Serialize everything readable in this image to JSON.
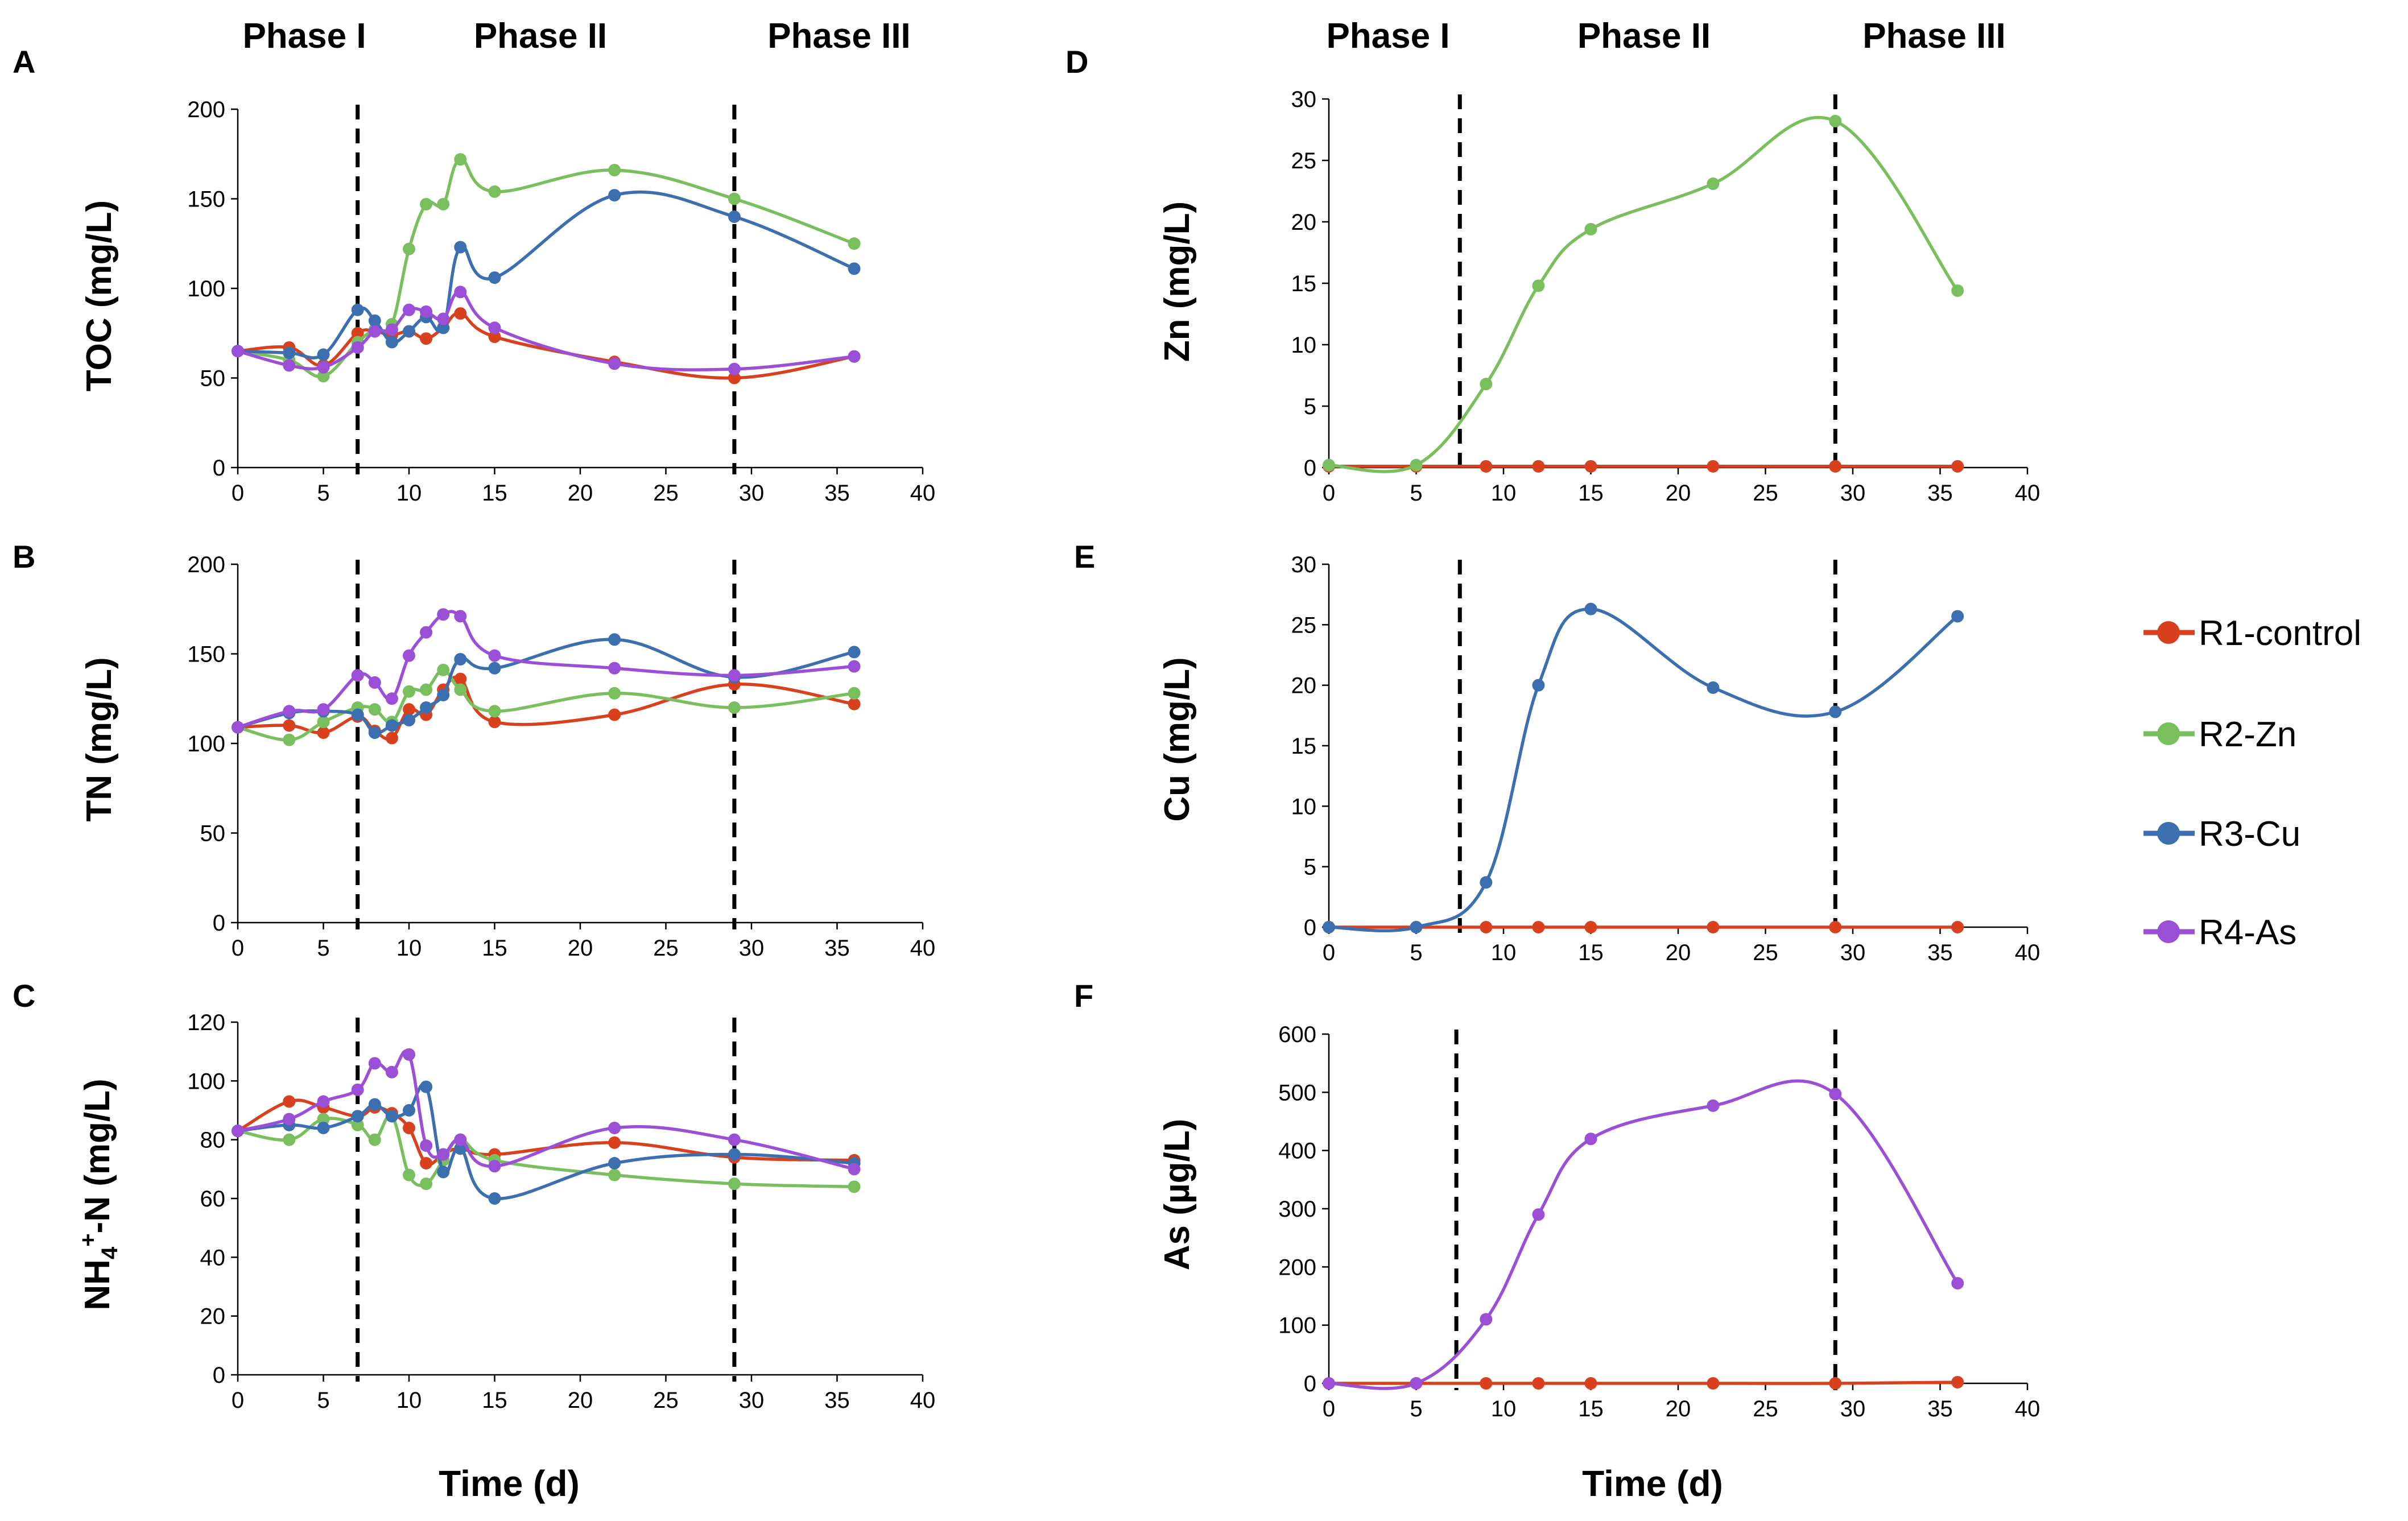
{
  "figure": {
    "phase_labels": [
      "Phase I",
      "Phase II",
      "Phase III"
    ],
    "xlabel": "Time (d)",
    "legend": [
      {
        "name": "R1-control",
        "color": "#D9411E"
      },
      {
        "name": "R2-Zn",
        "color": "#79BF5E"
      },
      {
        "name": "R3-Cu",
        "color": "#3B6FB0"
      },
      {
        "name": "R4-As",
        "color": "#9B4FD6"
      }
    ]
  },
  "chart_data": [
    {
      "type": "line",
      "panel": "A",
      "title": "",
      "ylabel": "TOC (mg/L)",
      "xlabel": "",
      "xlim": [
        0,
        40
      ],
      "ylim": [
        0,
        200
      ],
      "xticks": [
        "0",
        "5",
        "10",
        "15",
        "20",
        "25",
        "30",
        "35",
        "40"
      ],
      "yticks": [
        "0",
        "50",
        "100",
        "150",
        "200"
      ],
      "phase_lines": [
        7,
        29
      ],
      "series": [
        {
          "name": "R1-control",
          "color": "#D9411E",
          "x": [
            0,
            3,
            5,
            7,
            8,
            9,
            10,
            11,
            12,
            13,
            15,
            22,
            29,
            36
          ],
          "y": [
            65,
            67,
            57,
            75,
            76,
            74,
            76,
            72,
            78,
            86,
            73,
            59,
            50,
            62
          ]
        },
        {
          "name": "R2-Zn",
          "color": "#79BF5E",
          "x": [
            0,
            3,
            5,
            7,
            8,
            9,
            10,
            11,
            12,
            13,
            15,
            22,
            29,
            36
          ],
          "y": [
            65,
            60,
            51,
            70,
            77,
            80,
            122,
            147,
            147,
            172,
            154,
            166,
            150,
            125
          ]
        },
        {
          "name": "R3-Cu",
          "color": "#3B6FB0",
          "x": [
            0,
            3,
            5,
            7,
            8,
            9,
            10,
            11,
            12,
            13,
            15,
            22,
            29,
            36
          ],
          "y": [
            65,
            64,
            63,
            88,
            82,
            70,
            76,
            84,
            78,
            123,
            106,
            152,
            140,
            111
          ]
        },
        {
          "name": "R4-As",
          "color": "#9B4FD6",
          "x": [
            0,
            3,
            5,
            7,
            8,
            9,
            10,
            11,
            12,
            13,
            15,
            22,
            29,
            36
          ],
          "y": [
            65,
            57,
            56,
            67,
            76,
            77,
            88,
            87,
            83,
            98,
            78,
            58,
            55,
            62
          ]
        }
      ]
    },
    {
      "type": "line",
      "panel": "B",
      "title": "",
      "ylabel": "TN (mg/L)",
      "xlabel": "",
      "xlim": [
        0,
        40
      ],
      "ylim": [
        0,
        200
      ],
      "xticks": [
        "0",
        "5",
        "10",
        "15",
        "20",
        "25",
        "30",
        "35",
        "40"
      ],
      "yticks": [
        "0",
        "50",
        "100",
        "150",
        "200"
      ],
      "phase_lines": [
        7,
        29
      ],
      "series": [
        {
          "name": "R1-control",
          "color": "#D9411E",
          "x": [
            0,
            3,
            5,
            7,
            8,
            9,
            10,
            11,
            12,
            13,
            15,
            22,
            29,
            36
          ],
          "y": [
            109,
            110,
            106,
            115,
            107,
            103,
            119,
            116,
            130,
            136,
            112,
            116,
            133,
            122
          ]
        },
        {
          "name": "R2-Zn",
          "color": "#79BF5E",
          "x": [
            0,
            3,
            5,
            7,
            8,
            9,
            10,
            11,
            12,
            13,
            15,
            22,
            29,
            36
          ],
          "y": [
            109,
            102,
            112,
            120,
            119,
            112,
            129,
            130,
            141,
            130,
            118,
            128,
            120,
            128
          ]
        },
        {
          "name": "R3-Cu",
          "color": "#3B6FB0",
          "x": [
            0,
            3,
            5,
            7,
            8,
            9,
            10,
            11,
            12,
            13,
            15,
            22,
            29,
            36
          ],
          "y": [
            109,
            117,
            118,
            116,
            106,
            110,
            113,
            120,
            127,
            147,
            142,
            158,
            137,
            151
          ]
        },
        {
          "name": "R4-As",
          "color": "#9B4FD6",
          "x": [
            0,
            3,
            5,
            7,
            8,
            9,
            10,
            11,
            12,
            13,
            15,
            22,
            29,
            36
          ],
          "y": [
            109,
            118,
            119,
            138,
            134,
            125,
            149,
            162,
            172,
            171,
            149,
            142,
            138,
            143
          ]
        }
      ]
    },
    {
      "type": "line",
      "panel": "C",
      "title": "",
      "ylabel": "NH4+-N (mg/L)",
      "xlabel": "",
      "xlim": [
        0,
        40
      ],
      "ylim": [
        0,
        120
      ],
      "xticks": [
        "0",
        "5",
        "10",
        "15",
        "20",
        "25",
        "30",
        "35",
        "40"
      ],
      "yticks": [
        "0",
        "20",
        "40",
        "60",
        "80",
        "100",
        "120"
      ],
      "phase_lines": [
        7,
        29
      ],
      "series": [
        {
          "name": "R1-control",
          "color": "#D9411E",
          "x": [
            0,
            3,
            5,
            7,
            8,
            9,
            10,
            11,
            12,
            13,
            15,
            22,
            29,
            36
          ],
          "y": [
            83,
            93,
            91,
            88,
            91,
            89,
            84,
            72,
            75,
            77,
            75,
            79,
            74,
            73
          ]
        },
        {
          "name": "R2-Zn",
          "color": "#79BF5E",
          "x": [
            0,
            3,
            5,
            7,
            8,
            9,
            10,
            11,
            12,
            13,
            15,
            22,
            29,
            36
          ],
          "y": [
            83,
            80,
            87,
            85,
            80,
            88,
            68,
            65,
            73,
            80,
            73,
            68,
            65,
            64
          ]
        },
        {
          "name": "R3-Cu",
          "color": "#3B6FB0",
          "x": [
            0,
            3,
            5,
            7,
            8,
            9,
            10,
            11,
            12,
            13,
            15,
            22,
            29,
            36
          ],
          "y": [
            83,
            85,
            84,
            88,
            92,
            88,
            90,
            98,
            69,
            77,
            60,
            72,
            75,
            72
          ]
        },
        {
          "name": "R4-As",
          "color": "#9B4FD6",
          "x": [
            0,
            3,
            5,
            7,
            8,
            9,
            10,
            11,
            12,
            13,
            15,
            22,
            29,
            36
          ],
          "y": [
            83,
            87,
            93,
            97,
            106,
            103,
            109,
            78,
            75,
            80,
            71,
            84,
            80,
            70
          ]
        }
      ]
    },
    {
      "type": "line",
      "panel": "D",
      "title": "",
      "ylabel": "Zn (mg/L)",
      "xlabel": "",
      "xlim": [
        0,
        40
      ],
      "ylim": [
        0,
        30
      ],
      "xticks": [
        "0",
        "5",
        "10",
        "15",
        "20",
        "25",
        "30",
        "35",
        "40"
      ],
      "yticks": [
        "0",
        "5",
        "10",
        "15",
        "20",
        "25",
        "30"
      ],
      "phase_lines": [
        7.5,
        29
      ],
      "series": [
        {
          "name": "R1-control",
          "color": "#D9411E",
          "x": [
            0,
            5,
            9,
            12,
            15,
            22,
            29,
            36
          ],
          "y": [
            0.1,
            0.1,
            0.1,
            0.1,
            0.1,
            0.1,
            0.1,
            0.1
          ]
        },
        {
          "name": "R2-Zn",
          "color": "#79BF5E",
          "x": [
            0,
            5,
            9,
            12,
            15,
            22,
            29,
            36
          ],
          "y": [
            0.2,
            0.2,
            6.8,
            14.8,
            19.4,
            23.1,
            28.2,
            14.4
          ]
        }
      ]
    },
    {
      "type": "line",
      "panel": "E",
      "title": "",
      "ylabel": "Cu (mg/L)",
      "xlabel": "",
      "xlim": [
        0,
        40
      ],
      "ylim": [
        0,
        30
      ],
      "xticks": [
        "0",
        "5",
        "10",
        "15",
        "20",
        "25",
        "30",
        "35",
        "40"
      ],
      "yticks": [
        "0",
        "5",
        "10",
        "15",
        "20",
        "25",
        "30"
      ],
      "phase_lines": [
        7.5,
        29
      ],
      "series": [
        {
          "name": "R1-control",
          "color": "#D9411E",
          "x": [
            0,
            5,
            9,
            12,
            15,
            22,
            29,
            36
          ],
          "y": [
            0,
            0,
            0,
            0,
            0,
            0,
            0,
            0
          ]
        },
        {
          "name": "R3-Cu",
          "color": "#3B6FB0",
          "x": [
            0,
            5,
            9,
            12,
            15,
            22,
            29,
            36
          ],
          "y": [
            0,
            0,
            3.7,
            20,
            26.3,
            19.8,
            17.8,
            25.7
          ]
        }
      ]
    },
    {
      "type": "line",
      "panel": "F",
      "title": "",
      "ylabel": "As (µg/L)",
      "xlabel": "",
      "xlim": [
        0,
        40
      ],
      "ylim": [
        0,
        600
      ],
      "xticks": [
        "0",
        "5",
        "10",
        "15",
        "20",
        "25",
        "30",
        "35",
        "40"
      ],
      "yticks": [
        "0",
        "100",
        "200",
        "300",
        "400",
        "500",
        "600"
      ],
      "phase_lines": [
        7.3,
        29
      ],
      "series": [
        {
          "name": "R1-control",
          "color": "#D9411E",
          "x": [
            0,
            5,
            9,
            12,
            15,
            22,
            29,
            36
          ],
          "y": [
            0,
            0,
            0,
            0,
            0,
            0,
            0,
            2
          ]
        },
        {
          "name": "R4-As",
          "color": "#9B4FD6",
          "x": [
            0,
            5,
            9,
            12,
            15,
            22,
            29,
            36
          ],
          "y": [
            0,
            0,
            110,
            290,
            420,
            477,
            497,
            172
          ]
        }
      ]
    }
  ]
}
